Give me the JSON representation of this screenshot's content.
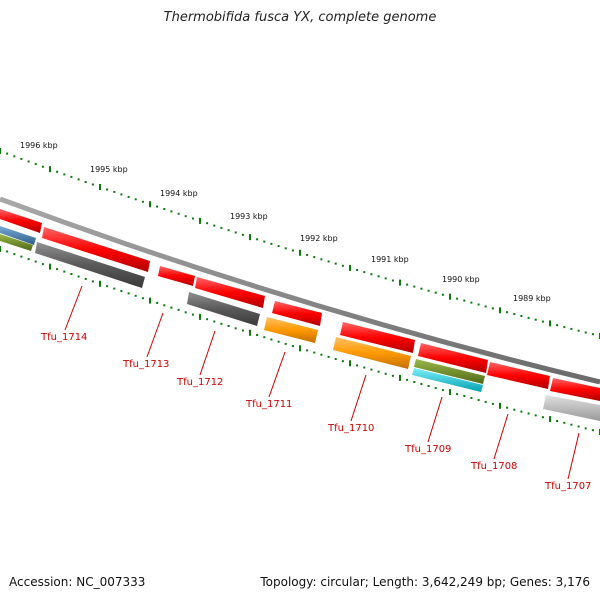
{
  "title": "Thermobifida fusca YX, complete genome",
  "footer": {
    "accession": "Accession: NC_007333",
    "summary": "Topology: circular; Length: 3,642,249 bp; Genes: 3,176"
  },
  "colors": {
    "backbone": "#808080",
    "tick": "#0a7a0a",
    "label": "#cc0000",
    "gene_red": "#ff0000",
    "gene_dark_gray": "#606060",
    "gene_orange": "#ff9900",
    "gene_olive": "#6b8e23",
    "gene_cyan": "#00c8d8",
    "gene_blue": "#4682b4",
    "gene_light_gray": "#b8b8b8"
  },
  "scale_labels": [
    "1996 kbp",
    "1995 kbp",
    "1994 kbp",
    "1993 kbp",
    "1992 kbp",
    "1991 kbp",
    "1990 kbp",
    "1989 kbp"
  ],
  "gene_labels": [
    "Tfu_1714",
    "Tfu_1713",
    "Tfu_1712",
    "Tfu_1711",
    "Tfu_1710",
    "Tfu_1709",
    "Tfu_1708",
    "Tfu_1707"
  ]
}
